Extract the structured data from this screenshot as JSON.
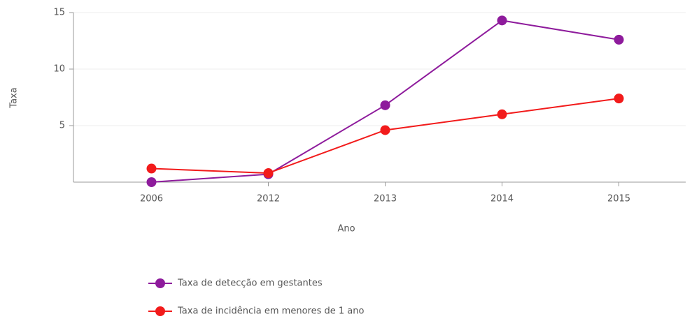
{
  "chart_data": {
    "type": "line",
    "categories": [
      "2006",
      "2012",
      "2013",
      "2014",
      "2015"
    ],
    "series": [
      {
        "name": "Taxa de detecção em gestantes",
        "color": "#8e1b9c",
        "values": [
          0,
          0.7,
          6.8,
          14.3,
          12.6
        ]
      },
      {
        "name": "Taxa de incidência em menores de 1 ano",
        "color": "#f21b1b",
        "values": [
          1.2,
          0.8,
          4.6,
          6.0,
          7.4
        ]
      }
    ],
    "ylim": [
      0,
      15
    ],
    "yticks": [
      5,
      10,
      15
    ],
    "grid": true,
    "xlabel": "Ano",
    "ylabel": "Taxa",
    "legend": "bottom-left"
  }
}
